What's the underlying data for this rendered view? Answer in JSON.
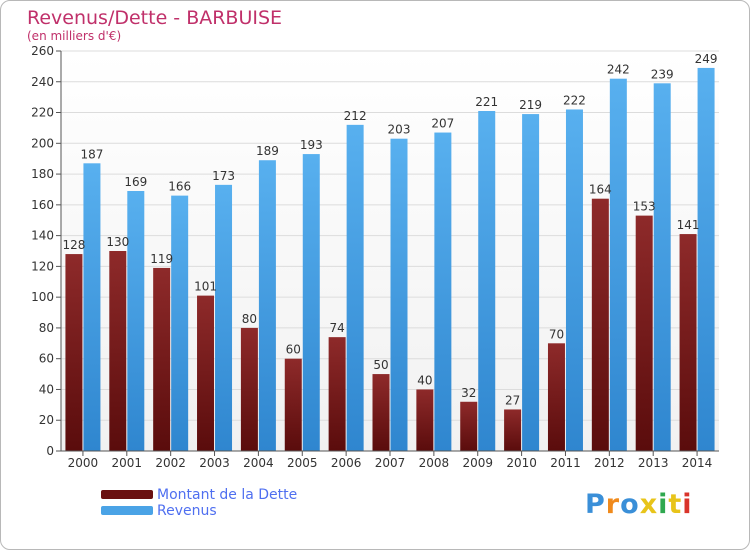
{
  "chart_data": {
    "type": "bar",
    "title": "Revenus/Dette - BARBUISE",
    "subtitle": "(en milliers d'€)",
    "categories": [
      "2000",
      "2001",
      "2002",
      "2003",
      "2004",
      "2005",
      "2006",
      "2007",
      "2008",
      "2009",
      "2010",
      "2011",
      "2012",
      "2013",
      "2014"
    ],
    "series": [
      {
        "name": "Montant de la Dette",
        "color": "#7a1c1c",
        "values": [
          128,
          130,
          119,
          101,
          80,
          60,
          74,
          50,
          40,
          32,
          27,
          70,
          164,
          153,
          141
        ]
      },
      {
        "name": "Revenus",
        "color": "#4aa3e6",
        "values": [
          187,
          169,
          166,
          173,
          189,
          193,
          212,
          203,
          207,
          221,
          219,
          222,
          242,
          239,
          249
        ]
      }
    ],
    "ylim": [
      0,
      260
    ],
    "yticks": [
      0,
      20,
      40,
      60,
      80,
      100,
      120,
      140,
      160,
      180,
      200,
      220,
      240,
      260
    ],
    "grid": true,
    "legend_position": "bottom-left"
  },
  "logo": {
    "letters": [
      "P",
      "r",
      "o",
      "x",
      "i",
      "t",
      "i"
    ],
    "colors": [
      "#3a8fd8",
      "#f08a1c",
      "#3a8fd8",
      "#e8c41a",
      "#2fa84f",
      "#e8c41a",
      "#d9342b"
    ]
  }
}
